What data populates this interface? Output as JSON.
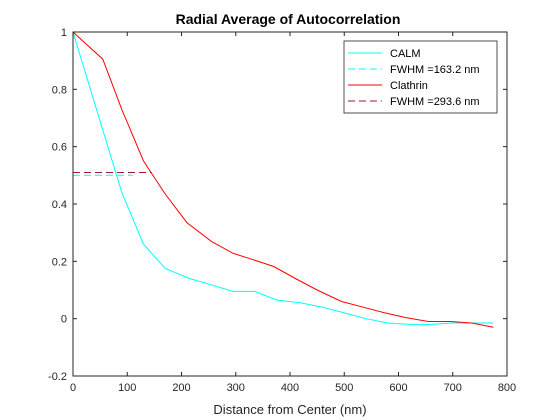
{
  "chart_data": {
    "type": "line",
    "title": "Radial Average of Autocorrelation",
    "xlabel": "Distance from Center (nm)",
    "ylabel": "",
    "xlim": [
      0,
      800
    ],
    "ylim": [
      -0.2,
      1
    ],
    "xticks": [
      "0",
      "100",
      "200",
      "300",
      "400",
      "500",
      "600",
      "700",
      "800"
    ],
    "yticks": [
      "-0.2",
      "0",
      "0.2",
      "0.4",
      "0.6",
      "0.8",
      "1"
    ],
    "grid": false,
    "legend_position": "top-right",
    "series": [
      {
        "name": "CALM",
        "color": "#00FFFF",
        "style": "solid",
        "x": [
          0,
          45,
          90,
          130,
          170,
          215,
          260,
          295,
          335,
          375,
          420,
          460,
          500,
          540,
          580,
          620,
          660,
          700,
          740,
          775
        ],
        "y": [
          1,
          0.72,
          0.44,
          0.26,
          0.175,
          0.14,
          0.115,
          0.095,
          0.095,
          0.065,
          0.055,
          0.04,
          0.02,
          0.0,
          -0.015,
          -0.02,
          -0.02,
          -0.015,
          -0.015,
          -0.015
        ]
      },
      {
        "name": "FWHM =163.2 nm",
        "color": "#00FFFF",
        "style": "dashed",
        "x": [
          0,
          110
        ],
        "y": [
          0.5,
          0.5
        ]
      },
      {
        "name": "Clathrin",
        "color": "#FF0000",
        "style": "solid",
        "x": [
          0,
          55,
          90,
          130,
          170,
          210,
          255,
          295,
          330,
          370,
          410,
          450,
          495,
          535,
          575,
          615,
          655,
          695,
          735,
          775
        ],
        "y": [
          1,
          0.905,
          0.73,
          0.55,
          0.435,
          0.335,
          0.27,
          0.228,
          0.207,
          0.182,
          0.14,
          0.1,
          0.06,
          0.04,
          0.02,
          0.003,
          -0.01,
          -0.01,
          -0.015,
          -0.03
        ]
      },
      {
        "name": "FWHM =293.6 nm",
        "color": "#A2142F",
        "style": "dashed",
        "x": [
          0,
          145
        ],
        "y": [
          0.51,
          0.51
        ]
      }
    ]
  }
}
